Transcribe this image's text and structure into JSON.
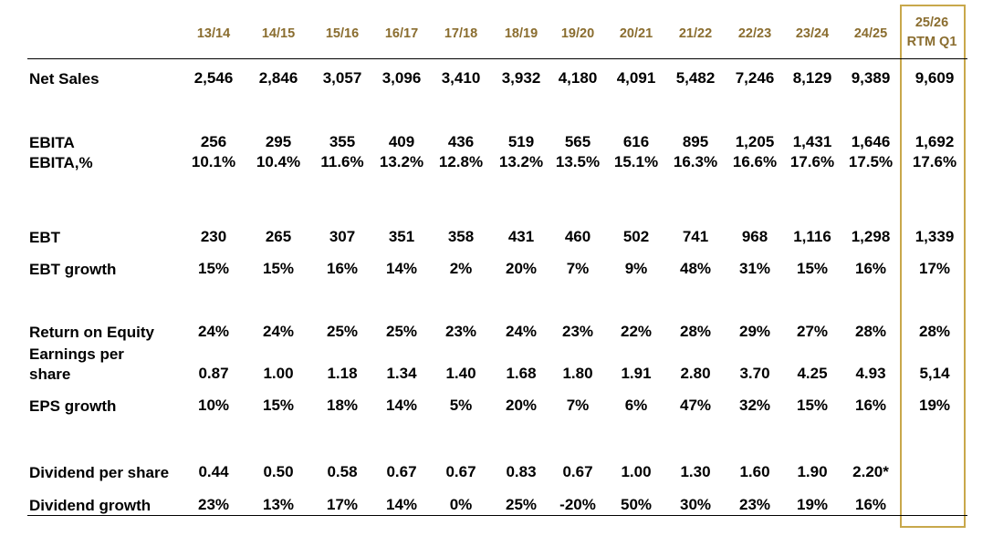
{
  "columns": [
    "13/14",
    "14/15",
    "15/16",
    "16/17",
    "17/18",
    "18/19",
    "19/20",
    "20/21",
    "21/22",
    "22/23",
    "23/24",
    "24/25"
  ],
  "highlight_column": {
    "line1": "25/26",
    "line2": "RTM Q1",
    "border_color": "#c8a84b"
  },
  "header_color": "#8a6d2f",
  "rows": [
    {
      "label": "Net Sales",
      "values": [
        "2,546",
        "2,846",
        "3,057",
        "3,096",
        "3,410",
        "3,932",
        "4,180",
        "4,091",
        "5,482",
        "7,246",
        "8,129",
        "9,389",
        "9,609"
      ]
    },
    {
      "label": "EBITA",
      "values": [
        "256",
        "295",
        "355",
        "409",
        "436",
        "519",
        "565",
        "616",
        "895",
        "1,205",
        "1,431",
        "1,646",
        "1,692"
      ]
    },
    {
      "label": "EBITA,%",
      "values": [
        "10.1%",
        "10.4%",
        "11.6%",
        "13.2%",
        "12.8%",
        "13.2%",
        "13.5%",
        "15.1%",
        "16.3%",
        "16.6%",
        "17.6%",
        "17.5%",
        "17.6%"
      ]
    },
    {
      "label": "EBT",
      "values": [
        "230",
        "265",
        "307",
        "351",
        "358",
        "431",
        "460",
        "502",
        "741",
        "968",
        "1,116",
        "1,298",
        "1,339"
      ]
    },
    {
      "label": "EBT growth",
      "values": [
        "15%",
        "15%",
        "16%",
        "14%",
        "2%",
        "20%",
        "7%",
        "9%",
        "48%",
        "31%",
        "15%",
        "16%",
        "17%"
      ]
    },
    {
      "label": "Return on Equity",
      "values": [
        "24%",
        "24%",
        "25%",
        "25%",
        "23%",
        "24%",
        "23%",
        "22%",
        "28%",
        "29%",
        "27%",
        "28%",
        "28%"
      ]
    },
    {
      "label": "Earnings per\nshare",
      "values": [
        "0.87",
        "1.00",
        "1.18",
        "1.34",
        "1.40",
        "1.68",
        "1.80",
        "1.91",
        "2.80",
        "3.70",
        "4.25",
        "4.93",
        "5,14"
      ]
    },
    {
      "label": "EPS growth",
      "values": [
        "10%",
        "15%",
        "18%",
        "14%",
        "5%",
        "20%",
        "7%",
        "6%",
        "47%",
        "32%",
        "15%",
        "16%",
        "19%"
      ]
    },
    {
      "label": "Dividend per share",
      "values": [
        "0.44",
        "0.50",
        "0.58",
        "0.67",
        "0.67",
        "0.83",
        "0.67",
        "1.00",
        "1.30",
        "1.60",
        "1.90",
        "2.20*",
        ""
      ]
    },
    {
      "label": "Dividend growth",
      "values": [
        "23%",
        "13%",
        "17%",
        "14%",
        "0%",
        "25%",
        "-20%",
        "50%",
        "30%",
        "23%",
        "19%",
        "16%",
        ""
      ]
    }
  ]
}
